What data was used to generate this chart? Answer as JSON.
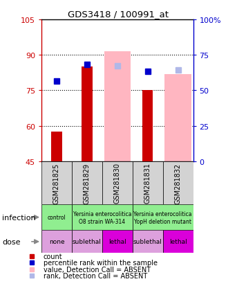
{
  "title": "GDS3418 / 100991_at",
  "samples": [
    "GSM281825",
    "GSM281829",
    "GSM281830",
    "GSM281831",
    "GSM281832"
  ],
  "ylim_left": [
    45,
    105
  ],
  "ylim_right": [
    0,
    100
  ],
  "yticks_left": [
    45,
    60,
    75,
    90,
    105
  ],
  "yticks_right": [
    0,
    25,
    50,
    75,
    100
  ],
  "yticklabels_right": [
    "0",
    "25",
    "50",
    "75",
    "100%"
  ],
  "count_values": [
    57.5,
    85.0,
    null,
    75.0,
    null
  ],
  "rank_values": [
    79.0,
    86.0,
    null,
    83.0,
    null
  ],
  "absent_value_values": [
    null,
    null,
    91.5,
    null,
    82.0
  ],
  "absent_rank_values": [
    null,
    null,
    85.5,
    null,
    83.5
  ],
  "bar_bottom": 45,
  "left_axis_color": "#cc0000",
  "right_axis_color": "#0000cc",
  "infection_data": [
    {
      "span": [
        0,
        1
      ],
      "label": "control",
      "color": "#90ee90"
    },
    {
      "span": [
        1,
        3
      ],
      "label": "Yersinia enterocolitica\nO8 strain WA-314",
      "color": "#90ee90"
    },
    {
      "span": [
        3,
        5
      ],
      "label": "Yersinia enterocolitica\nYopH deletion mutant",
      "color": "#90ee90"
    }
  ],
  "dose_data": [
    {
      "x": 0,
      "label": "none",
      "color": "#dda0dd"
    },
    {
      "x": 1,
      "label": "sublethal",
      "color": "#dda0dd"
    },
    {
      "x": 2,
      "label": "lethal",
      "color": "#da00da"
    },
    {
      "x": 3,
      "label": "sublethal",
      "color": "#dda0dd"
    },
    {
      "x": 4,
      "label": "lethal",
      "color": "#da00da"
    }
  ],
  "legend_items": [
    {
      "color": "#cc0000",
      "label": "count"
    },
    {
      "color": "#0000cc",
      "label": "percentile rank within the sample"
    },
    {
      "color": "#ffb6c1",
      "label": "value, Detection Call = ABSENT"
    },
    {
      "color": "#b0b8e8",
      "label": "rank, Detection Call = ABSENT"
    }
  ]
}
